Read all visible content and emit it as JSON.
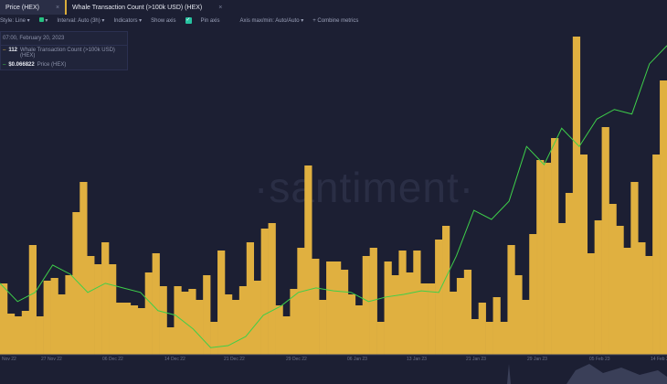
{
  "tabs": [
    {
      "label": "Price (HEX)",
      "close": "×"
    },
    {
      "label": "Whale Transaction Count (>100k USD) (HEX)",
      "close": "×"
    }
  ],
  "toolbar": {
    "style": "Style: Line ▾",
    "color_caret": "▾",
    "interval": "Interval: Auto (3h) ▾",
    "indicators": "Indicators ▾",
    "show_axis": "Show axis",
    "show_axis_checked": true,
    "pin_axis": "Pin axis",
    "axis_maxmin": "Axis max/min: Auto/Auto ▾",
    "combine": "+ Combine metrics"
  },
  "tooltip": {
    "time": "07:00, February 20, 2023",
    "rows": [
      {
        "value": "112",
        "label": "Whale Transaction Count (>100k USD) (HEX)"
      },
      {
        "value": "$0.066822",
        "label": "Price (HEX)"
      }
    ]
  },
  "watermark": "·santiment·",
  "colors": {
    "bars": "#e0b040",
    "price_line": "#3ecf4a",
    "background": "#1c1f33"
  },
  "chart_data": {
    "type": "bar+line",
    "x_tick_labels": [
      "Nov 22",
      "27 Nov 22",
      "06 Dec 22",
      "14 Dec 22",
      "21 Dec 22",
      "29 Dec 22",
      "06 Jan 23",
      "13 Jan 23",
      "21 Jan 23",
      "29 Jan 23",
      "05 Feb 23",
      "14 Feb 23"
    ],
    "series": [
      {
        "name": "Whale Transaction Count (>100k USD) (HEX)",
        "type": "bar",
        "values": [
          26,
          15,
          14,
          16,
          40,
          14,
          27,
          28,
          22,
          29,
          52,
          63,
          36,
          33,
          41,
          33,
          19,
          19,
          18,
          17,
          30,
          37,
          25,
          10,
          25,
          23,
          24,
          20,
          29,
          12,
          38,
          22,
          20,
          25,
          41,
          27,
          46,
          48,
          18,
          14,
          24,
          39,
          69,
          35,
          20,
          34,
          34,
          31,
          22,
          18,
          36,
          39,
          12,
          34,
          29,
          38,
          30,
          38,
          26,
          26,
          42,
          47,
          23,
          28,
          31,
          13,
          19,
          12,
          21,
          12,
          40,
          29,
          20,
          44,
          71,
          70,
          79,
          48,
          59,
          116,
          73,
          37,
          49,
          83,
          55,
          47,
          39,
          63,
          41,
          36,
          73,
          100
        ]
      },
      {
        "name": "Price (HEX)",
        "type": "line",
        "values": [
          0.0341,
          0.0305,
          0.0323,
          0.0377,
          0.0359,
          0.0323,
          0.0341,
          0.0332,
          0.0323,
          0.0287,
          0.0278,
          0.0251,
          0.0214,
          0.0218,
          0.0236,
          0.0278,
          0.0296,
          0.0323,
          0.0332,
          0.0326,
          0.0323,
          0.0305,
          0.0314,
          0.0319,
          0.0326,
          0.0323,
          0.0395,
          0.0485,
          0.0467,
          0.0503,
          0.0611,
          0.0575,
          0.0647,
          0.0611,
          0.0665,
          0.0684,
          0.0675,
          0.0774,
          0.081
        ]
      }
    ],
    "grid": false
  }
}
